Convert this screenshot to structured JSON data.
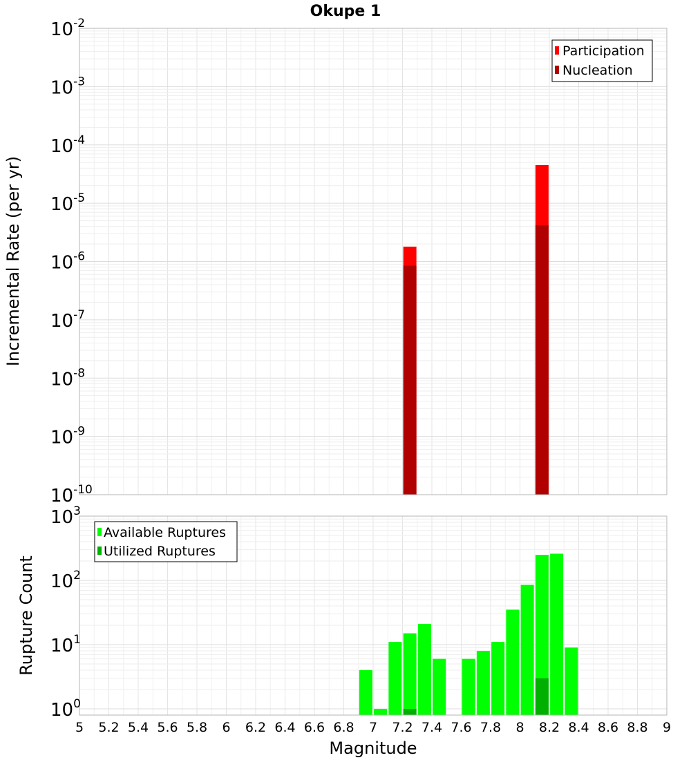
{
  "chart_data": [
    {
      "type": "bar",
      "title": "Okupe 1",
      "xlabel": "",
      "ylabel": "Incremental Rate (per yr)",
      "yscale": "log",
      "ylim": [
        1e-10,
        0.01
      ],
      "xlim": [
        5,
        9
      ],
      "grid": true,
      "legend_position": "top-right",
      "legend": [
        "Participation",
        "Nucleation"
      ],
      "x": [
        7.25,
        8.15
      ],
      "series": [
        {
          "name": "Participation",
          "color": "#ff0000",
          "values": [
            1.8e-06,
            4.5e-05
          ]
        },
        {
          "name": "Nucleation",
          "color": "#b00000",
          "values": [
            8.5e-07,
            4.2e-06
          ]
        }
      ]
    },
    {
      "type": "bar",
      "title": "",
      "xlabel": "Magnitude",
      "ylabel": "Rupture Count",
      "yscale": "log",
      "ylim": [
        0.8,
        1000
      ],
      "xlim": [
        5,
        9
      ],
      "grid": true,
      "legend_position": "top-left",
      "legend": [
        "Available Ruptures",
        "Utilized Ruptures"
      ],
      "x_ticks": [
        "5",
        "5.2",
        "5.4",
        "5.6",
        "5.8",
        "6",
        "6.2",
        "6.4",
        "6.6",
        "6.8",
        "7",
        "7.2",
        "7.4",
        "7.6",
        "7.8",
        "8",
        "8.2",
        "8.4",
        "8.6",
        "8.8",
        "9"
      ],
      "x": [
        6.95,
        7.05,
        7.15,
        7.25,
        7.35,
        7.45,
        7.65,
        7.75,
        7.85,
        7.95,
        8.05,
        8.15,
        8.25,
        8.35
      ],
      "series": [
        {
          "name": "Available Ruptures",
          "color": "#00ff00",
          "values": [
            4,
            1,
            11,
            15,
            21,
            6,
            6,
            8,
            11,
            35,
            85,
            250,
            260,
            9
          ]
        },
        {
          "name": "Utilized Ruptures",
          "color": "#00b000",
          "values": [
            null,
            null,
            null,
            1,
            null,
            null,
            null,
            null,
            null,
            null,
            null,
            3,
            null,
            null
          ]
        }
      ]
    }
  ]
}
